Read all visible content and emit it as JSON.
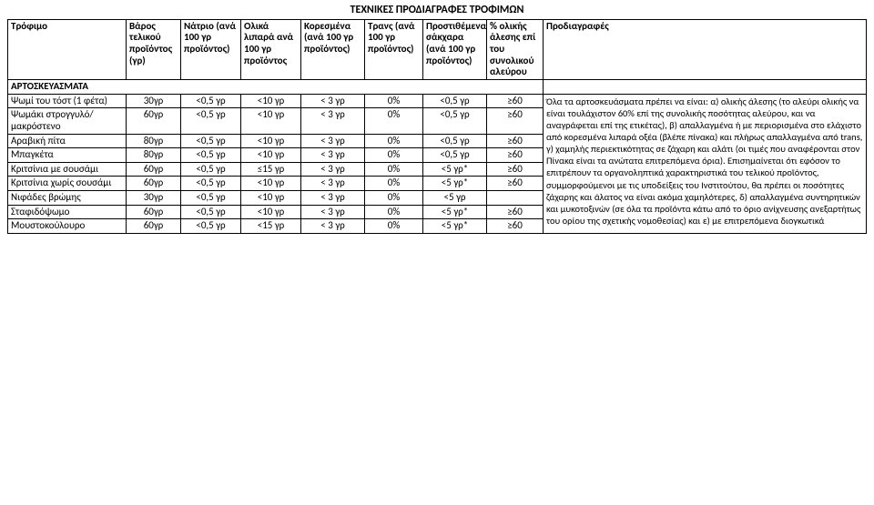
{
  "title": "ΤΕΧΝΙΚΕΣ ΠΡΟΔΙΑΓΡΑΦΕΣ ΤΡΟΦΙΜΩΝ",
  "headers": {
    "c0": "Τρόφιμο",
    "c1": "Βάρος τελικού προϊόντος (γρ)",
    "c2": "Νάτριο (ανά 100 γρ προϊόντος)",
    "c3": "Ολικά λιπαρά ανά 100 γρ προϊόντος",
    "c4": "Κορεσμένα (ανά 100 γρ προϊόντος)",
    "c5": "Τρανς (ανά 100 γρ προϊόντος)",
    "c6": "Προστιθέμενα σάκχαρα (ανά 100 γρ προϊόντος)",
    "c7": "% ολικής άλεσης επί του συνολικού αλεύρου",
    "c8": "Προδιαγραφές"
  },
  "section": "ΑΡΤΟΣΚΕΥΑΣΜΑΤΑ",
  "rows": [
    {
      "name": "Ψωμί του τόστ (1 φέτα)",
      "w": "30γρ",
      "na": "<0,5 γρ",
      "fat": "<10 γρ",
      "sat": "< 3 γρ",
      "trans": "0%",
      "sugar": "<0,5 γρ",
      "flour": "≥60"
    },
    {
      "name": "Ψωμάκι στρογγυλό/μακρόστενο",
      "w": "60γρ",
      "na": "<0,5 γρ",
      "fat": "<10 γρ",
      "sat": "< 3 γρ",
      "trans": "0%",
      "sugar": "<0,5 γρ",
      "flour": "≥60"
    },
    {
      "name": "Αραβική πίτα",
      "w": "80γρ",
      "na": "<0,5 γρ",
      "fat": "<10 γρ",
      "sat": "< 3 γρ",
      "trans": "0%",
      "sugar": "<0,5 γρ",
      "flour": "≥60"
    },
    {
      "name": "Μπαγκέτα",
      "w": "80γρ",
      "na": "<0,5 γρ",
      "fat": "<10 γρ",
      "sat": "< 3 γρ",
      "trans": "0%",
      "sugar": "<0,5 γρ",
      "flour": "≥60"
    },
    {
      "name": "Κριτσίνια με σουσάμι",
      "w": "60γρ",
      "na": "<0,5 γρ",
      "fat": "≤15 γρ",
      "sat": "< 3 γρ",
      "trans": "0%",
      "sugar": "<5 γρ*",
      "flour": "≥60"
    },
    {
      "name": "Κριτσίνια χωρίς σουσάμι",
      "w": "60γρ",
      "na": "<0,5 γρ",
      "fat": "<10 γρ",
      "sat": "< 3 γρ",
      "trans": "0%",
      "sugar": "<5 γρ*",
      "flour": "≥60"
    },
    {
      "name": "Νιφάδες βρώμης",
      "w": "30γρ",
      "na": "<0,5 γρ",
      "fat": "<10 γρ",
      "sat": "< 3 γρ",
      "trans": "0%",
      "sugar": "<5 γρ",
      "flour": ""
    },
    {
      "name": "Σταφιδόψωμο",
      "w": "60γρ",
      "na": "<0,5 γρ",
      "fat": "<10 γρ",
      "sat": "< 3 γρ",
      "trans": "0%",
      "sugar": "<5 γρ*",
      "flour": "≥60"
    },
    {
      "name": "Μουστοκούλουρο",
      "w": "60γρ",
      "na": "<0,5 γρ",
      "fat": "<15 γρ",
      "sat": "< 3 γρ",
      "trans": "0%",
      "sugar": "<5 γρ*",
      "flour": "≥60"
    }
  ],
  "spec_text": "Όλα τα αρτοσκευάσματα πρέπει να είναι: α) ολικής άλεσης (το αλεύρι ολικής να είναι τουλάχιστον 60% επί της συνολικής ποσότητας αλεύρου, και να αναγράφεται επί της ετικέτας), β) απαλλαγμένα ή με περιορισμένα στο ελάχιστο από κορεσμένα λιπαρά οξέα (βλέπε πίνακα) και πλήρως απαλλαγμένα από trans, γ) χαμηλής περιεκτικότητας σε ζάχαρη και αλάτι (οι τιμές που αναφέρονται στον Πίνακα είναι τα ανώτατα επιτρεπόμενα όρια). Επισημαίνεται ότι εφόσον το επιτρέπουν τα οργανοληπτικά χαρακτηριστικά του τελικού προϊόντος, συμμορφούμενοι με τις υποδείξεις του Ινστιτούτου, θα πρέπει οι ποσότητες ζάχαρης και άλατος να είναι ακόμα χαμηλότερες, δ) απαλλαγμένα συντηρητικών και μυκοτοξινών (σε όλα τα προϊόντα κάτω από το όριο ανίχνευσης ανεξαρτήτως του ορίου της σχετικής νομοθεσίας) και ε) με επιτρεπόμενα διογκωτικά"
}
